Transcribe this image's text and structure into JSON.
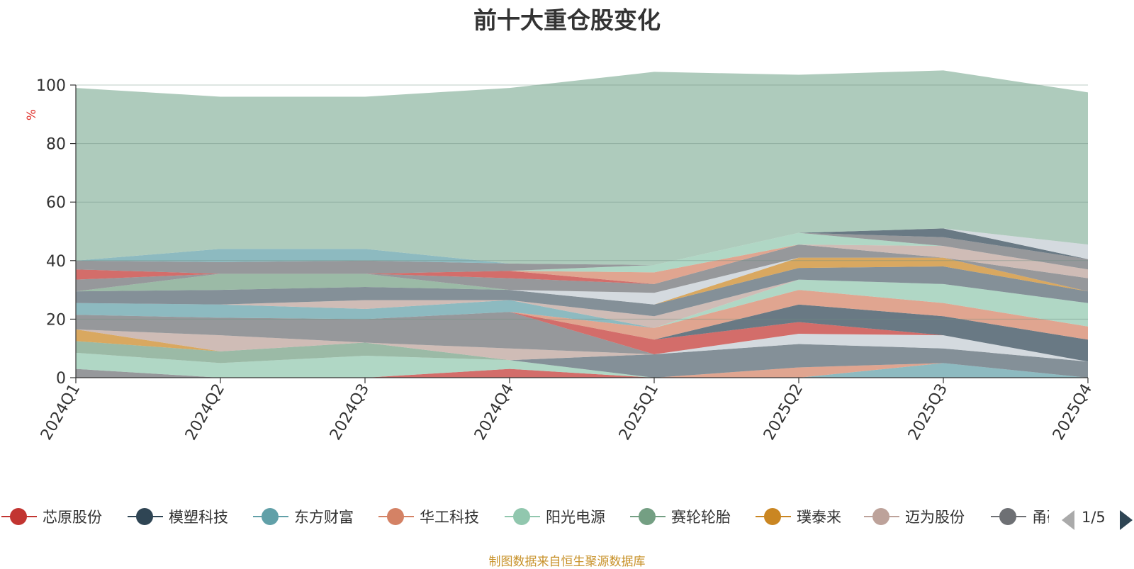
{
  "title": "前十大重仓股变化",
  "source_note": "制图数据来自恒生聚源数据库",
  "legend_pager": "1/5",
  "chart_data": {
    "type": "area",
    "title": "前十大重仓股变化",
    "ylabel": "%",
    "ylim": [
      0,
      100
    ],
    "yticks": [
      0,
      20,
      40,
      60,
      80,
      100
    ],
    "grid": true,
    "stacked": true,
    "x": [
      "2024Q1",
      "2024Q2",
      "2024Q3",
      "2024Q4",
      "2025Q1",
      "2025Q2",
      "2025Q3",
      "2025Q4"
    ],
    "series": [
      {
        "name": "",
        "color": "#6e7074",
        "values": [
          3.0,
          0.0,
          0.0,
          0.0,
          0.0,
          0.0,
          0.0,
          0.0
        ]
      },
      {
        "name": "",
        "color": "#c23531",
        "values": [
          0.0,
          0.0,
          0.0,
          3.0,
          0.0,
          0.0,
          0.0,
          0.0
        ]
      },
      {
        "name": "",
        "color": "#61a0a8",
        "values": [
          0.0,
          0.0,
          0.0,
          0.0,
          0.0,
          0.0,
          5.0,
          0.0
        ]
      },
      {
        "name": "",
        "color": "#d48265",
        "values": [
          0.0,
          0.0,
          0.0,
          0.0,
          0.0,
          3.5,
          0.0,
          0.0
        ]
      },
      {
        "name": "",
        "color": "#91c7ae",
        "values": [
          5.5,
          5.0,
          7.5,
          3.0,
          0.0,
          0.0,
          0.0,
          0.0
        ]
      },
      {
        "name": "",
        "color": "#546570",
        "values": [
          0.0,
          0.0,
          0.0,
          0.0,
          8.0,
          8.0,
          5.0,
          5.5
        ]
      },
      {
        "name": "",
        "color": "#749f83",
        "values": [
          4.0,
          4.0,
          4.5,
          0.0,
          0.0,
          0.0,
          0.0,
          0.0
        ]
      },
      {
        "name": "",
        "color": "#ca8622",
        "values": [
          4.0,
          0.0,
          0.0,
          0.0,
          0.0,
          0.0,
          0.0,
          0.0
        ]
      },
      {
        "name": "",
        "color": "#bda29a",
        "values": [
          0.0,
          5.5,
          0.0,
          4.0,
          0.0,
          0.0,
          0.0,
          0.0
        ]
      },
      {
        "name": "",
        "color": "#6e7074",
        "values": [
          5.0,
          6.0,
          8.0,
          12.5,
          0.0,
          0.0,
          0.0,
          0.0
        ]
      },
      {
        "name": "",
        "color": "#c4ccd3",
        "values": [
          0.0,
          0.0,
          0.0,
          0.0,
          0.0,
          3.5,
          4.5,
          0.0
        ]
      },
      {
        "name": "",
        "color": "#c23531",
        "values": [
          0.0,
          0.0,
          0.0,
          0.0,
          5.0,
          4.0,
          0.0,
          0.0
        ]
      },
      {
        "name": "",
        "color": "#2f4554",
        "values": [
          0.0,
          0.0,
          0.0,
          0.0,
          0.0,
          6.0,
          6.5,
          7.5
        ]
      },
      {
        "name": "",
        "color": "#d48265",
        "values": [
          0.0,
          0.0,
          0.0,
          0.0,
          4.0,
          5.0,
          4.5,
          4.5
        ]
      },
      {
        "name": "",
        "color": "#91c7ae",
        "values": [
          0.0,
          0.0,
          0.0,
          0.0,
          0.0,
          3.5,
          6.5,
          8.0
        ]
      },
      {
        "name": "",
        "color": "#61a0a8",
        "values": [
          4.0,
          4.5,
          3.5,
          4.0,
          0.0,
          0.0,
          0.0,
          0.0
        ]
      },
      {
        "name": "",
        "color": "#bda29a",
        "values": [
          0.0,
          0.0,
          3.0,
          0.0,
          4.0,
          0.0,
          0.0,
          0.0
        ]
      },
      {
        "name": "",
        "color": "#546570",
        "values": [
          4.0,
          5.0,
          4.5,
          3.5,
          4.0,
          4.0,
          6.0,
          4.0
        ]
      },
      {
        "name": "",
        "color": "#ca8622",
        "values": [
          0.0,
          0.0,
          0.0,
          0.0,
          0.0,
          3.5,
          3.0,
          0.0
        ]
      },
      {
        "name": "",
        "color": "#749f83",
        "values": [
          0.0,
          5.5,
          4.5,
          0.0,
          0.0,
          0.0,
          0.0,
          0.0
        ]
      },
      {
        "name": "",
        "color": "#c4ccd3",
        "values": [
          0.0,
          0.0,
          0.0,
          0.0,
          4.0,
          0.0,
          0.0,
          0.0
        ]
      },
      {
        "name": "",
        "color": "#6e7074",
        "values": [
          4.0,
          0.0,
          0.0,
          4.0,
          3.0,
          4.5,
          0.0,
          4.5
        ]
      },
      {
        "name": "",
        "color": "#c23531",
        "values": [
          3.5,
          0.0,
          0.0,
          2.5,
          0.0,
          0.0,
          0.0,
          0.0
        ]
      },
      {
        "name": "",
        "color": "#d48265",
        "values": [
          0.0,
          0.0,
          0.0,
          0.0,
          4.0,
          0.0,
          0.0,
          0.0
        ]
      },
      {
        "name": "",
        "color": "#bda29a",
        "values": [
          0.0,
          0.0,
          0.0,
          0.0,
          0.0,
          0.0,
          4.0,
          3.0
        ]
      },
      {
        "name": "",
        "color": "#91c7ae",
        "values": [
          0.0,
          0.0,
          0.0,
          0.0,
          2.5,
          4.0,
          0.0,
          0.0
        ]
      },
      {
        "name": "",
        "color": "#6e7074",
        "values": [
          3.0,
          4.0,
          4.5,
          2.5,
          0.0,
          0.0,
          3.0,
          3.5
        ]
      },
      {
        "name": "",
        "color": "#61a0a8",
        "values": [
          0.0,
          4.5,
          4.0,
          0.0,
          0.0,
          0.0,
          0.0,
          0.0
        ]
      },
      {
        "name": "",
        "color": "#2f4554",
        "values": [
          0.0,
          0.0,
          0.0,
          0.0,
          0.0,
          0.0,
          3.0,
          0.0
        ]
      },
      {
        "name": "",
        "color": "#c4ccd3",
        "values": [
          0.0,
          0.0,
          0.0,
          0.0,
          0.0,
          0.0,
          0.0,
          5.0
        ]
      },
      {
        "name": "",
        "color": "#8fb7a2",
        "values": [
          59.0,
          52.0,
          52.0,
          60.0,
          66.0,
          54.0,
          54.0,
          52.0
        ]
      }
    ]
  },
  "legend": [
    {
      "label": "芯原股份",
      "color": "#c23531"
    },
    {
      "label": "模塑科技",
      "color": "#2f4554"
    },
    {
      "label": "东方财富",
      "color": "#61a0a8"
    },
    {
      "label": "华工科技",
      "color": "#d48265"
    },
    {
      "label": "阳光电源",
      "color": "#91c7ae"
    },
    {
      "label": "赛轮轮胎",
      "color": "#749f83"
    },
    {
      "label": "璞泰来",
      "color": "#ca8622"
    },
    {
      "label": "迈为股份",
      "color": "#bda29a"
    },
    {
      "label": "甬矽电子",
      "color": "#6e7074"
    }
  ]
}
